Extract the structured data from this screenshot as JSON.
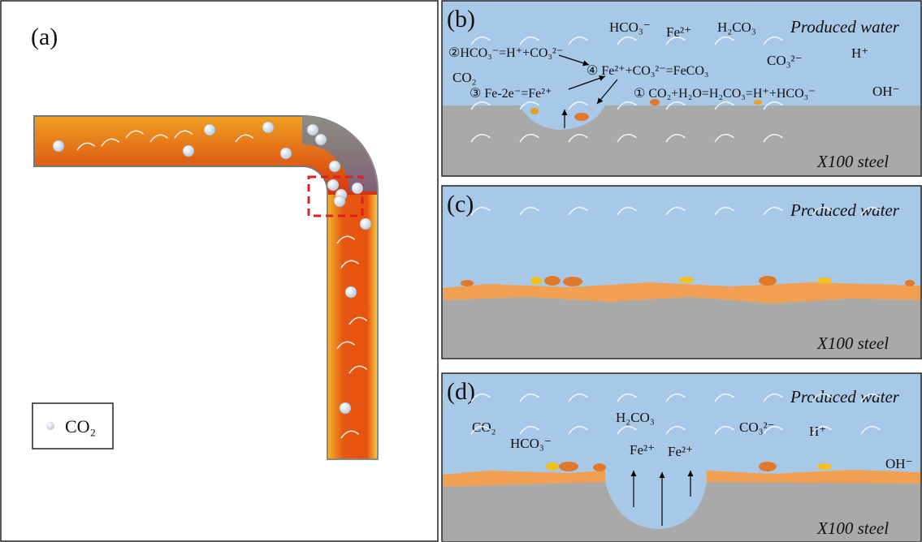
{
  "panel_a": {
    "label": "(a)",
    "legend": "CO₂"
  },
  "panel_b": {
    "label": "(b)",
    "medium": "Produced water",
    "metal": "X100 steel",
    "species": [
      "HCO₃⁻",
      "Fe²⁺",
      "H₂CO₃",
      "CO₃²⁻",
      "H⁺",
      "OH⁻",
      "CO₂"
    ],
    "reactions": [
      "②HCO₃⁻=H⁺+CO₃²⁻",
      "④ Fe²⁺+CO₃²⁻=FeCO₃",
      "③ Fe-2e⁻=Fe²⁺",
      "① CO₂+H₂O=H₂CO₃=H⁺+HCO₃⁻"
    ]
  },
  "panel_c": {
    "label": "(c)",
    "medium": "Produced water",
    "metal": "X100 steel"
  },
  "panel_d": {
    "label": "(d)",
    "medium": "Produced water",
    "metal": "X100 steel",
    "species": [
      "CO₂",
      "HCO₃⁻",
      "H₂CO₃",
      "Fe²⁺",
      "Fe²⁺",
      "CO₃²⁻",
      "H⁺",
      "OH⁻"
    ]
  }
}
